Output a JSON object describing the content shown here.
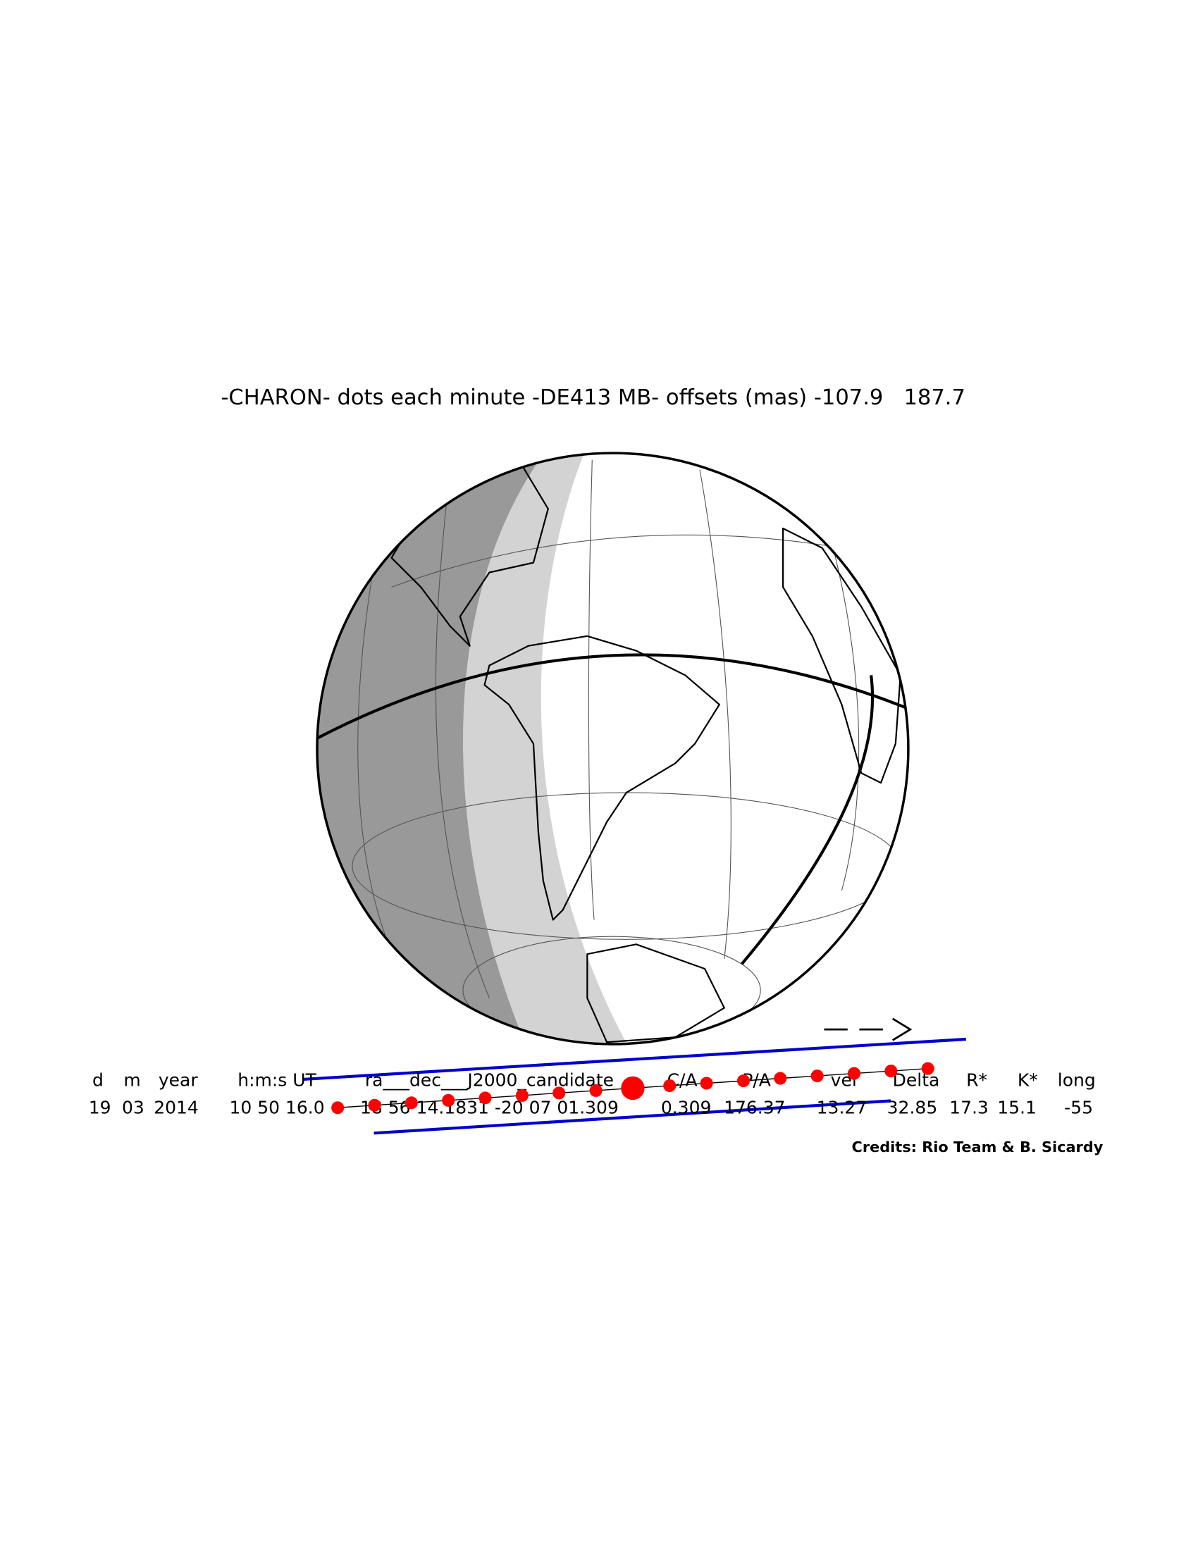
{
  "title": "-CHARON- dots each minute -DE413 MB- offsets (mas) -107.9   187.7",
  "table": {
    "headers": [
      "d",
      "m",
      "year",
      "h:m:s UT",
      "ra___dec___J2000_candidate",
      "C/A",
      "P/A",
      "vel",
      "Delta",
      "R*",
      "K*",
      "long"
    ],
    "values": [
      "19",
      "03",
      "2014",
      "10 50 16.0",
      "18 56 14.1831 -20 07 01.309",
      "0.309",
      "176.37",
      "13.27",
      "32.85",
      "17.3",
      "15.1",
      "-55"
    ]
  },
  "credits": "Credits: Rio Team & B. Sicardy"
}
